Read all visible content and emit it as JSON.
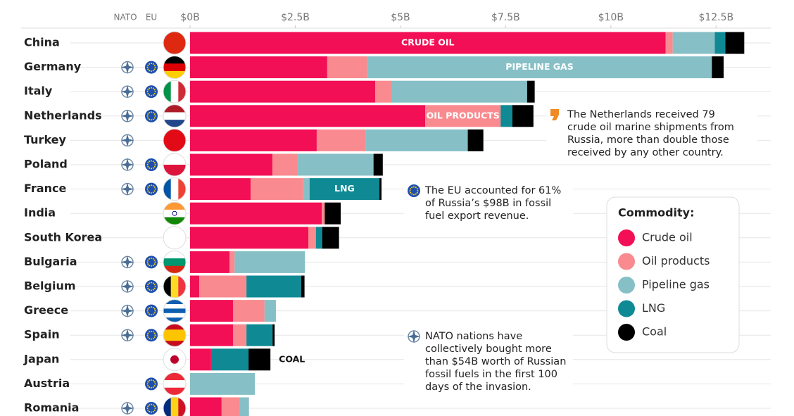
{
  "chart_data": {
    "type": "stacked-bar-horizontal",
    "column_headers": [
      "NATO",
      "EU"
    ],
    "categories": [
      "China",
      "Germany",
      "Italy",
      "Netherlands",
      "Turkey",
      "Poland",
      "France",
      "India",
      "South Korea",
      "Bulgaria",
      "Belgium",
      "Greece",
      "Spain",
      "Japan",
      "Austria",
      "Romania"
    ],
    "nato": [
      false,
      true,
      true,
      true,
      true,
      true,
      true,
      false,
      false,
      true,
      true,
      true,
      true,
      false,
      false,
      true
    ],
    "eu": [
      false,
      true,
      true,
      true,
      false,
      true,
      true,
      false,
      false,
      true,
      true,
      true,
      true,
      false,
      true,
      true
    ],
    "series": [
      {
        "name": "Crude oil",
        "color": "#f20f55",
        "label": "CRUDE OIL",
        "label_at": "China",
        "values": [
          11.3,
          3.26,
          4.4,
          5.59,
          3.01,
          1.96,
          1.44,
          3.13,
          2.81,
          0.94,
          0.22,
          1.02,
          1.02,
          0.5,
          0,
          0.75
        ]
      },
      {
        "name": "Oil products",
        "color": "#f98a8f",
        "label": "OIL PRODUCTS",
        "label_at": "Netherlands",
        "values": [
          0.17,
          0.95,
          0.4,
          1.79,
          1.17,
          0.59,
          1.25,
          0.07,
          0.18,
          0.12,
          1.12,
          0.75,
          0.32,
          0,
          0,
          0.43
        ]
      },
      {
        "name": "Pipeline gas",
        "color": "#86c0c6",
        "label": "PIPELINE GAS",
        "label_at": "Germany",
        "values": [
          1.0,
          8.19,
          3.21,
          0,
          2.42,
          1.81,
          0.15,
          0,
          0,
          1.67,
          0,
          0.27,
          0,
          0,
          1.54,
          0.22
        ]
      },
      {
        "name": "LNG",
        "color": "#0f8a94",
        "label": "LNG",
        "label_at": "France",
        "values": [
          0.25,
          0,
          0,
          0.28,
          0,
          0,
          1.66,
          0,
          0.15,
          0,
          1.3,
          0,
          0.62,
          0.89,
          0,
          0
        ]
      },
      {
        "name": "Coal",
        "color": "#000000",
        "label": "COAL",
        "label_at": "Japan",
        "values": [
          0.45,
          0.28,
          0.18,
          0.5,
          0.37,
          0.22,
          0.05,
          0.38,
          0.4,
          0,
          0.08,
          0,
          0.05,
          0.52,
          0,
          0
        ]
      }
    ],
    "xlim": [
      0,
      13.8
    ],
    "xticks": [
      {
        "value": 0,
        "label": "$0B"
      },
      {
        "value": 2.5,
        "label": "$2.5B"
      },
      {
        "value": 5,
        "label": "$5B"
      },
      {
        "value": 7.5,
        "label": "$7.5B"
      },
      {
        "value": 10,
        "label": "$10B"
      },
      {
        "value": 12.5,
        "label": "$12.5B"
      }
    ],
    "legend_title": "Commodity:",
    "annotations": [
      {
        "icon": "netherlands",
        "lines": [
          "The Netherlands received 79",
          "crude oil marine shipments from",
          "Russia, more than double those",
          "received by any other country."
        ]
      },
      {
        "icon": "eu",
        "lines": [
          "The EU accounted for 61%",
          "of Russia’s $98B in fossil",
          "fuel export revenue."
        ]
      },
      {
        "icon": "nato",
        "lines": [
          "NATO nations have",
          "collectively bought more",
          "than $54B worth of Russian",
          "fossil fuels in the first 100",
          "days of the invasion."
        ]
      }
    ]
  }
}
